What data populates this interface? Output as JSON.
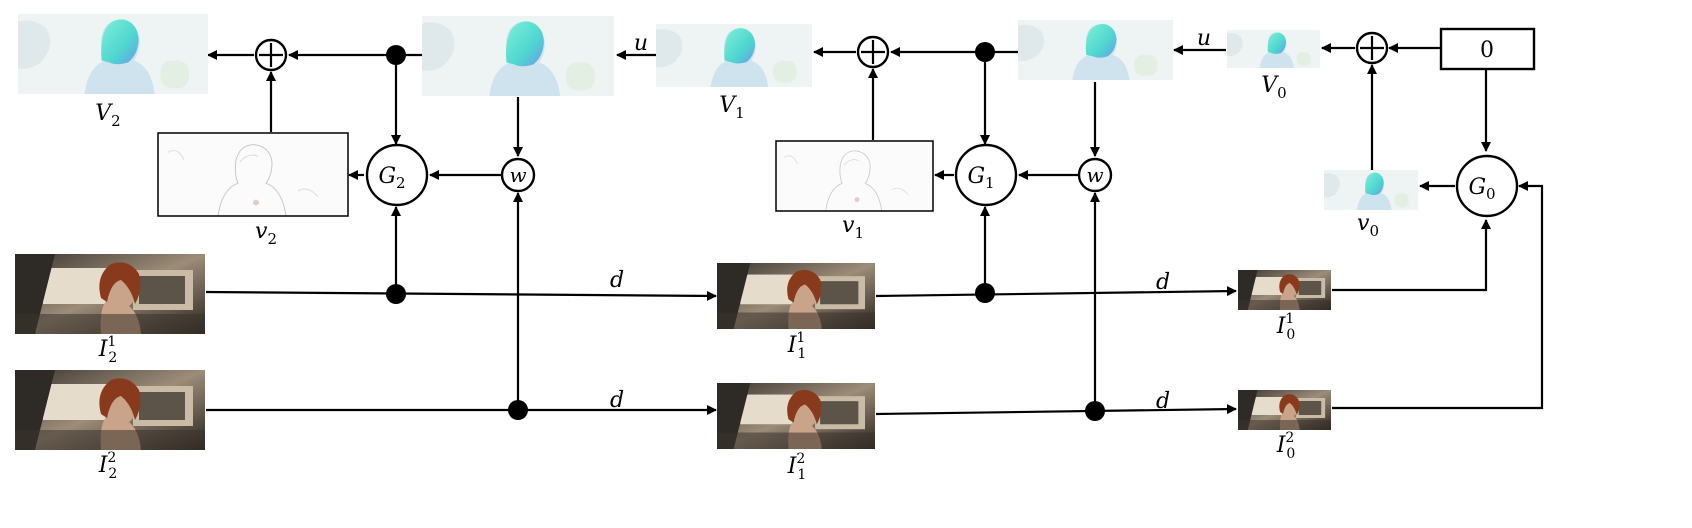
{
  "diagram": {
    "labels": {
      "V2": "V",
      "V2_sub": "2",
      "V1": "V",
      "V1_sub": "1",
      "V0": "V",
      "V0_sub": "0",
      "v2": "v",
      "v2_sub": "2",
      "v1": "v",
      "v1_sub": "1",
      "v0": "v",
      "v0_sub": "0",
      "G2": "G",
      "G2_sub": "2",
      "G1": "G",
      "G1_sub": "1",
      "G0": "G",
      "G0_sub": "0",
      "w": "w",
      "u": "u",
      "d": "d",
      "zero": "0",
      "I21": "I",
      "I21_sub": "2",
      "I21_sup": "1",
      "I22": "I",
      "I22_sub": "2",
      "I22_sup": "2",
      "I11": "I",
      "I11_sub": "1",
      "I11_sup": "1",
      "I12": "I",
      "I12_sub": "1",
      "I12_sup": "2",
      "I01": "I",
      "I01_sub": "0",
      "I01_sup": "1",
      "I02": "I",
      "I02_sub": "0",
      "I02_sup": "2"
    },
    "colors": {
      "flow_background": "#eef3f3",
      "flow_figure": "#5fe0c8",
      "residual_background": "#fbfbfb",
      "frame_wall": "#8a7a68",
      "frame_window": "#e6dccb",
      "frame_hair": "#8a3a1c"
    }
  }
}
